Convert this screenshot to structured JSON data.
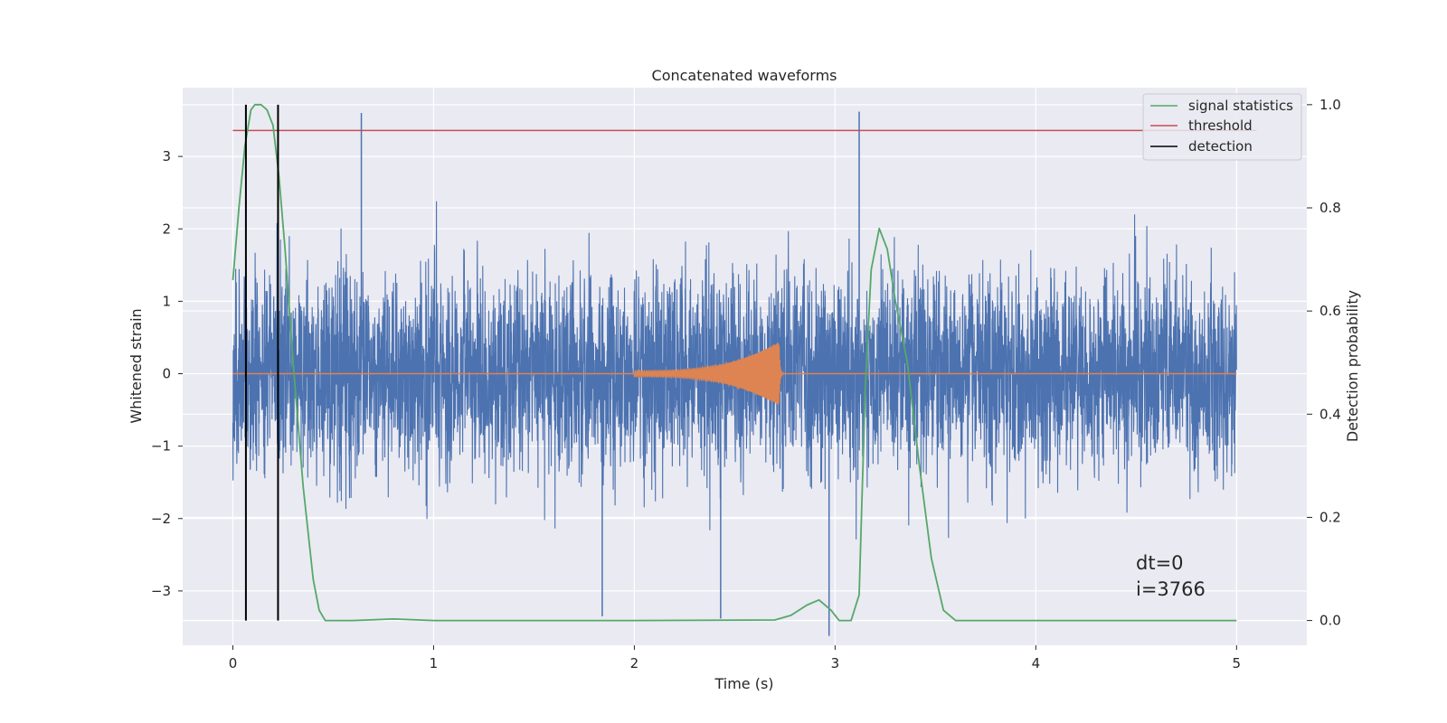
{
  "chart_data": {
    "type": "line",
    "title": "Concatenated waveforms",
    "xlabel": "Time (s)",
    "ylabel": "Whitened strain",
    "y2label": "Detection probability",
    "xlim": [
      -0.25,
      5.35
    ],
    "ylim": [
      -3.75,
      3.95
    ],
    "y2lim": [
      -0.048,
      1.033
    ],
    "xticks": [
      0,
      1,
      2,
      3,
      4,
      5
    ],
    "yticks": [
      -3,
      -2,
      -1,
      0,
      1,
      2,
      3
    ],
    "y2ticks": [
      0.0,
      0.2,
      0.4,
      0.6,
      0.8,
      1.0
    ],
    "ytick_labels": [
      "−3",
      "−2",
      "−1",
      "0",
      "1",
      "2",
      "3"
    ],
    "y2tick_labels": [
      "0.0",
      "0.2",
      "0.4",
      "0.6",
      "0.8",
      "1.0"
    ],
    "grid": true,
    "legend_position": "top-right",
    "colors": {
      "noise": "#4c72b0",
      "injection": "#dd8452",
      "signal_statistics": "#55a868",
      "threshold": "#c44e52",
      "detection": "#000000",
      "background": "#eaeaf2",
      "grid": "#ffffff"
    },
    "series": [
      {
        "name": "whitened noise",
        "axis": "left",
        "x_range": [
          0,
          5
        ],
        "amplitude_range": [
          -3.6,
          3.6
        ],
        "description_points": [
          [
            0.64,
            3.6
          ],
          [
            3.12,
            3.62
          ],
          [
            1.84,
            -3.35
          ],
          [
            2.43,
            -3.38
          ],
          [
            2.97,
            -3.62
          ]
        ]
      },
      {
        "name": "injected chirp",
        "axis": "left",
        "x_start": 2.0,
        "x_merger": 2.72,
        "amplitude_start": 0.04,
        "amplitude_peak": 0.45
      },
      {
        "name": "signal statistics",
        "axis": "right",
        "x": [
          0.0,
          0.03,
          0.06,
          0.09,
          0.11,
          0.14,
          0.17,
          0.2,
          0.23,
          0.26,
          0.3,
          0.35,
          0.4,
          0.43,
          0.46,
          0.6,
          0.8,
          1.0,
          2.0,
          2.7,
          2.78,
          2.86,
          2.92,
          2.98,
          3.02,
          3.08,
          3.12,
          3.15,
          3.18,
          3.22,
          3.26,
          3.3,
          3.36,
          3.42,
          3.48,
          3.54,
          3.6,
          4.0,
          5.0
        ],
        "values": [
          0.66,
          0.8,
          0.92,
          0.99,
          1.0,
          1.0,
          0.99,
          0.96,
          0.86,
          0.72,
          0.5,
          0.26,
          0.08,
          0.02,
          0.0,
          0.0,
          0.003,
          0.0,
          0.0,
          0.001,
          0.01,
          0.03,
          0.04,
          0.02,
          0.0,
          0.0,
          0.05,
          0.45,
          0.68,
          0.76,
          0.72,
          0.62,
          0.5,
          0.3,
          0.12,
          0.02,
          0.0,
          0.0,
          0.0
        ]
      },
      {
        "name": "threshold",
        "axis": "right",
        "x": [
          0.0,
          5.1
        ],
        "values": [
          0.95,
          0.95
        ]
      },
      {
        "name": "detection",
        "axis": "right",
        "x": [
          0.065,
          0.225
        ],
        "values_range": [
          0.0,
          1.0
        ]
      }
    ],
    "legend": [
      "signal statistics",
      "threshold",
      "detection"
    ],
    "annotations": [
      "dt=0",
      "i=3766"
    ],
    "annotation_anchor": {
      "x": 4.5,
      "y": -2.9
    }
  }
}
